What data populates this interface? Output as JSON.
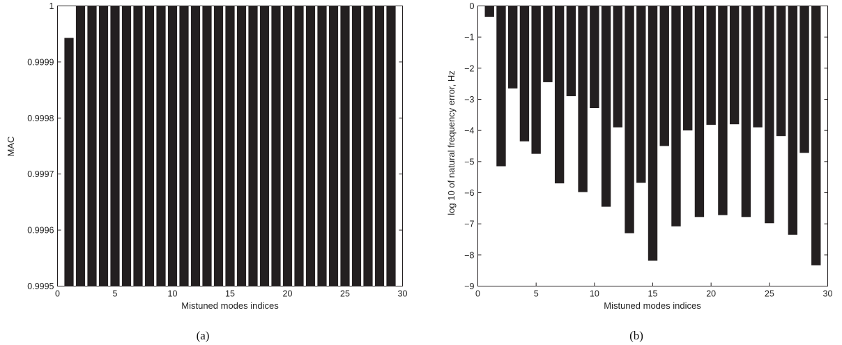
{
  "chart_data": [
    {
      "type": "bar",
      "caption": "(a)",
      "xlabel": "Mistuned modes indices",
      "ylabel": "MAC",
      "xlim": [
        0,
        30
      ],
      "ylim": [
        0.9995,
        1
      ],
      "x_ticks": [
        "0",
        "5",
        "10",
        "15",
        "20",
        "25",
        "30"
      ],
      "y_ticks": [
        "0.9995",
        "0.9996",
        "0.9997",
        "0.9998",
        "0.9999",
        "1"
      ],
      "x_tick_values": [
        0,
        5,
        10,
        15,
        20,
        25,
        30
      ],
      "y_tick_values": [
        0.9995,
        0.9996,
        0.9997,
        0.9998,
        0.9999,
        1
      ],
      "categories": [
        1,
        2,
        3,
        4,
        5,
        6,
        7,
        8,
        9,
        10,
        11,
        12,
        13,
        14,
        15,
        16,
        17,
        18,
        19,
        20,
        21,
        22,
        23,
        24,
        25,
        26,
        27,
        28,
        29
      ],
      "values": [
        0.999943,
        1,
        1,
        1,
        1,
        1,
        1,
        1,
        1,
        1,
        1,
        1,
        1,
        1,
        1,
        1,
        1,
        1,
        1,
        1,
        1,
        1,
        1,
        1,
        1,
        1,
        1,
        1,
        1
      ],
      "bar_color": "#231f20",
      "grid": false
    },
    {
      "type": "bar",
      "caption": "(b)",
      "xlabel": "Mistuned modes indices",
      "ylabel": "log 10 of natural frequency error, Hz",
      "xlim": [
        0,
        30
      ],
      "ylim": [
        -9,
        0
      ],
      "x_ticks": [
        "0",
        "5",
        "10",
        "15",
        "20",
        "25",
        "30"
      ],
      "y_ticks": [
        "−9",
        "−8",
        "−7",
        "−6",
        "−5",
        "−4",
        "−3",
        "−2",
        "−1",
        "0"
      ],
      "x_tick_values": [
        0,
        5,
        10,
        15,
        20,
        25,
        30
      ],
      "y_tick_values": [
        -9,
        -8,
        -7,
        -6,
        -5,
        -4,
        -3,
        -2,
        -1,
        0
      ],
      "categories": [
        1,
        2,
        3,
        4,
        5,
        6,
        7,
        8,
        9,
        10,
        11,
        12,
        13,
        14,
        15,
        16,
        17,
        18,
        19,
        20,
        21,
        22,
        23,
        24,
        25,
        26,
        27,
        28,
        29
      ],
      "values": [
        -0.35,
        -5.15,
        -2.65,
        -4.35,
        -4.75,
        -2.45,
        -5.7,
        -2.9,
        -5.98,
        -3.28,
        -6.45,
        -3.9,
        -7.3,
        -5.68,
        -8.18,
        -4.5,
        -7.08,
        -4.0,
        -6.78,
        -3.82,
        -6.72,
        -3.8,
        -6.78,
        -3.9,
        -6.98,
        -4.18,
        -7.35,
        -4.72,
        -8.33
      ],
      "bar_color": "#231f20",
      "grid": false
    }
  ]
}
